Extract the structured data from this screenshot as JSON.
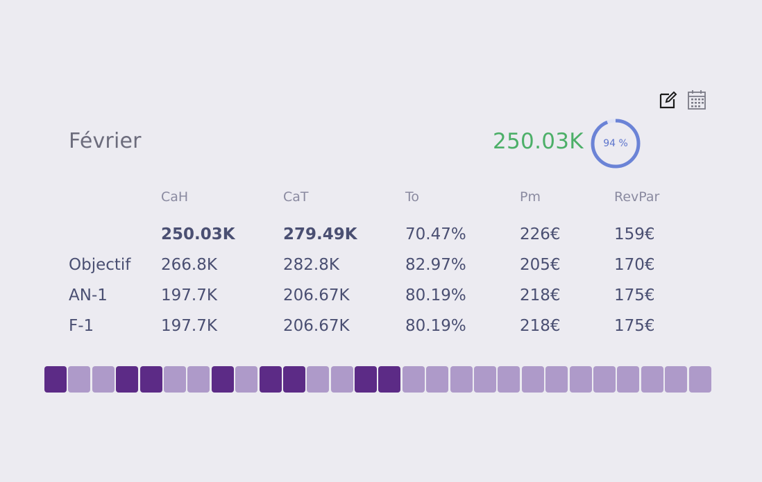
{
  "header": {
    "month": "Février",
    "total": "250.03K",
    "occupancy_label": "94 %",
    "occupancy_percent": 94,
    "edit_icon": "edit-icon",
    "calendar_icon": "calendar-icon"
  },
  "table": {
    "columns": [
      "CaH",
      "CaT",
      "To",
      "Pm",
      "RevPar"
    ],
    "rows": [
      {
        "label": "",
        "values": [
          "250.03K",
          "279.49K",
          "70.47%",
          "226€",
          "159€"
        ]
      },
      {
        "label": "Objectif",
        "values": [
          "266.8K",
          "282.8K",
          "82.97%",
          "205€",
          "170€"
        ]
      },
      {
        "label": "AN-1",
        "values": [
          "197.7K",
          "206.67K",
          "80.19%",
          "218€",
          "175€"
        ]
      },
      {
        "label": "F-1",
        "values": [
          "197.7K",
          "206.67K",
          "80.19%",
          "218€",
          "175€"
        ]
      }
    ]
  },
  "days": [
    "dark",
    "light",
    "light",
    "dark",
    "dark",
    "light",
    "light",
    "dark",
    "light",
    "dark",
    "dark",
    "light",
    "light",
    "dark",
    "dark",
    "light",
    "light",
    "light",
    "light",
    "light",
    "light",
    "light",
    "light",
    "light",
    "light",
    "light",
    "light",
    "light"
  ],
  "colors": {
    "total": "#4caf68",
    "gauge": "#6b83d6",
    "day_dark": "#5c2b86",
    "day_light": "#ae9ac9"
  }
}
